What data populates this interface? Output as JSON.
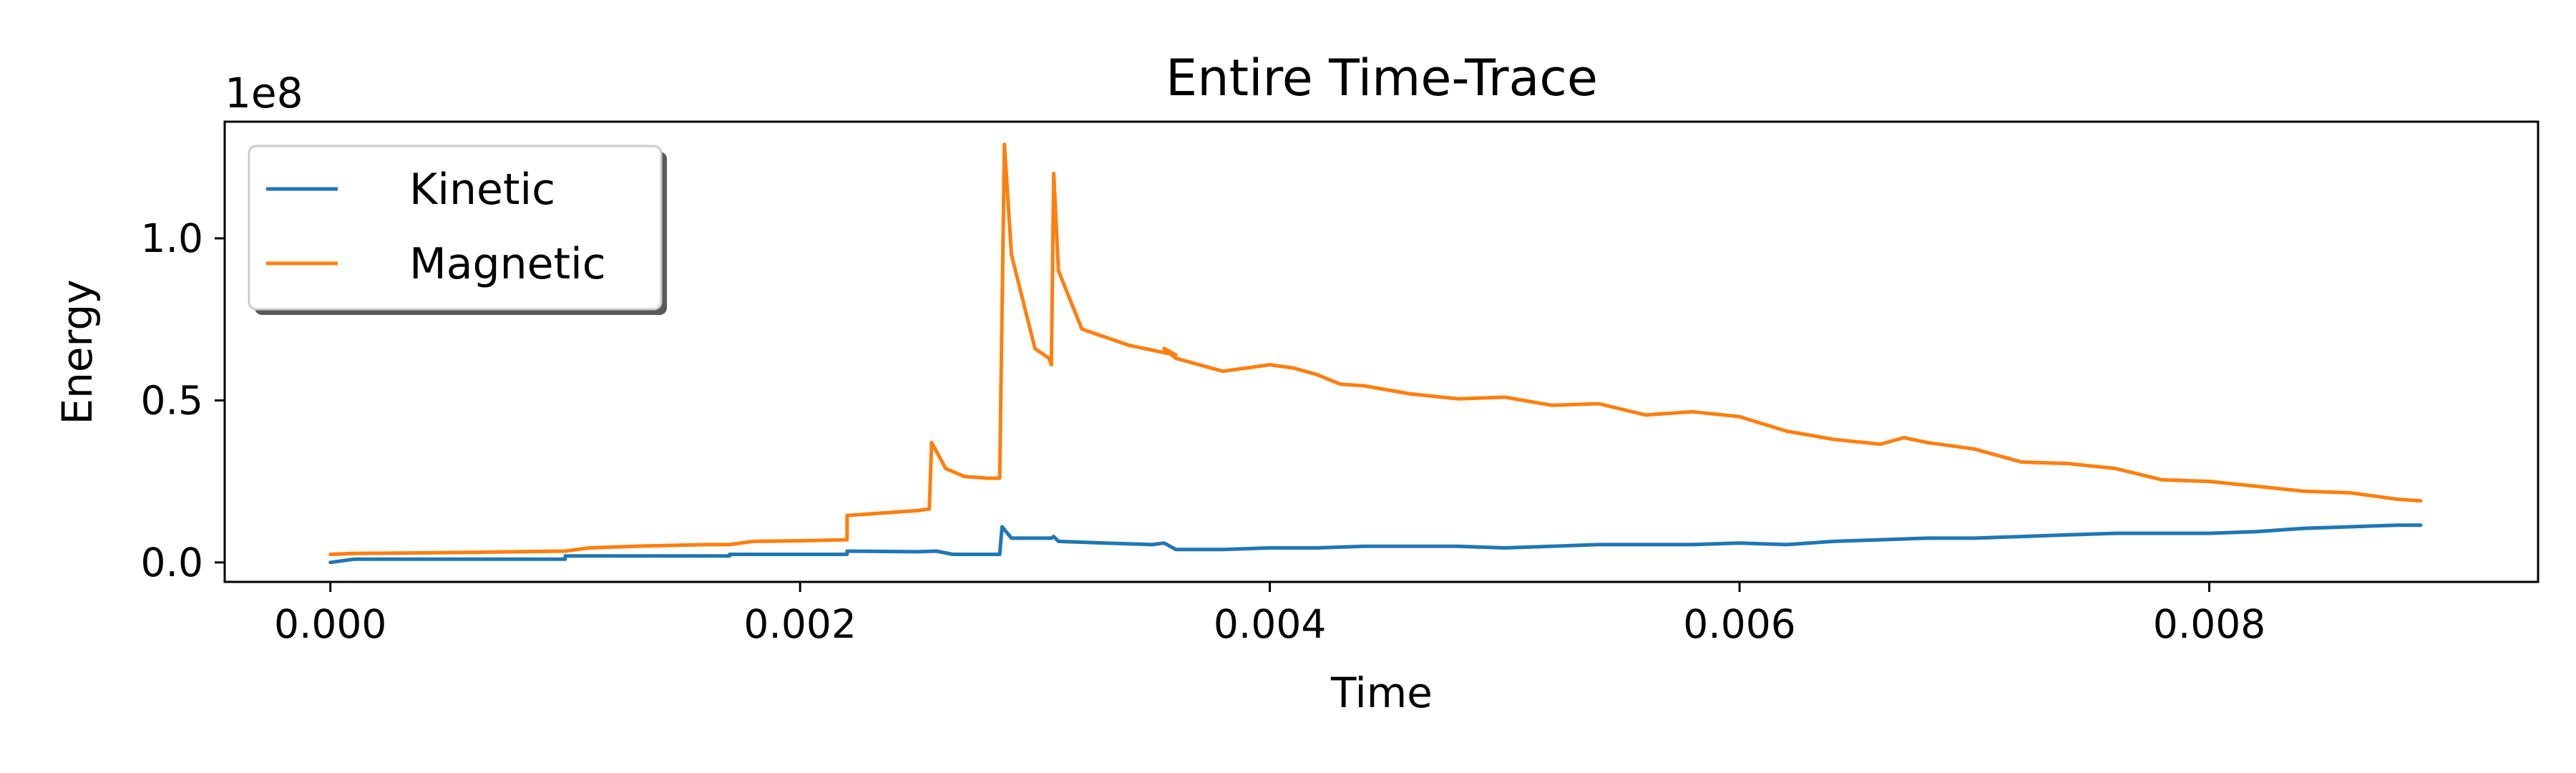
{
  "chart_data": {
    "type": "line",
    "title": "Entire Time-Trace",
    "xlabel": "Time",
    "ylabel": "Energy",
    "y_scale_label": "1e8",
    "xlim": [
      -0.00045,
      0.0094
    ],
    "ylim": [
      -0.06,
      1.36
    ],
    "y_unit_multiplier": 100000000,
    "grid": false,
    "legend_position": "upper-left",
    "x_ticks": [
      {
        "value": 0.0,
        "label": "0.000"
      },
      {
        "value": 0.002,
        "label": "0.002"
      },
      {
        "value": 0.004,
        "label": "0.004"
      },
      {
        "value": 0.006,
        "label": "0.006"
      },
      {
        "value": 0.008,
        "label": "0.008"
      }
    ],
    "y_ticks": [
      {
        "value": 0.0,
        "label": "0.0"
      },
      {
        "value": 0.5,
        "label": "0.5"
      },
      {
        "value": 1.0,
        "label": "1.0"
      }
    ],
    "series": [
      {
        "name": "Kinetic",
        "color": "#1f77b4",
        "points": [
          [
            0.0,
            0.0
          ],
          [
            0.0001,
            0.01
          ],
          [
            0.0003,
            0.01
          ],
          [
            0.0006,
            0.01
          ],
          [
            0.0009,
            0.01
          ],
          [
            0.001,
            0.01
          ],
          [
            0.001,
            0.02
          ],
          [
            0.0013,
            0.02
          ],
          [
            0.0016,
            0.02
          ],
          [
            0.0017,
            0.02
          ],
          [
            0.0017,
            0.025
          ],
          [
            0.002,
            0.025
          ],
          [
            0.0022,
            0.025
          ],
          [
            0.0022,
            0.035
          ],
          [
            0.0025,
            0.033
          ],
          [
            0.00258,
            0.035
          ],
          [
            0.00265,
            0.025
          ],
          [
            0.0028,
            0.025
          ],
          [
            0.00285,
            0.025
          ],
          [
            0.00286,
            0.11
          ],
          [
            0.0029,
            0.075
          ],
          [
            0.003,
            0.075
          ],
          [
            0.00307,
            0.075
          ],
          [
            0.00308,
            0.08
          ],
          [
            0.0031,
            0.065
          ],
          [
            0.0033,
            0.06
          ],
          [
            0.0035,
            0.055
          ],
          [
            0.00355,
            0.06
          ],
          [
            0.0036,
            0.04
          ],
          [
            0.0038,
            0.04
          ],
          [
            0.004,
            0.045
          ],
          [
            0.0042,
            0.045
          ],
          [
            0.0044,
            0.05
          ],
          [
            0.0046,
            0.05
          ],
          [
            0.0048,
            0.05
          ],
          [
            0.005,
            0.045
          ],
          [
            0.0052,
            0.05
          ],
          [
            0.0054,
            0.055
          ],
          [
            0.0056,
            0.055
          ],
          [
            0.0058,
            0.055
          ],
          [
            0.006,
            0.06
          ],
          [
            0.0062,
            0.055
          ],
          [
            0.0064,
            0.065
          ],
          [
            0.0066,
            0.07
          ],
          [
            0.0068,
            0.075
          ],
          [
            0.007,
            0.075
          ],
          [
            0.0072,
            0.08
          ],
          [
            0.0074,
            0.085
          ],
          [
            0.0076,
            0.09
          ],
          [
            0.0078,
            0.09
          ],
          [
            0.008,
            0.09
          ],
          [
            0.0082,
            0.095
          ],
          [
            0.0084,
            0.105
          ],
          [
            0.0086,
            0.11
          ],
          [
            0.0088,
            0.115
          ],
          [
            0.0089,
            0.115
          ]
        ]
      },
      {
        "name": "Magnetic",
        "color": "#ff7f0e",
        "points": [
          [
            0.0,
            0.025
          ],
          [
            0.0001,
            0.028
          ],
          [
            0.0003,
            0.029
          ],
          [
            0.0006,
            0.031
          ],
          [
            0.0009,
            0.034
          ],
          [
            0.001,
            0.035
          ],
          [
            0.0011,
            0.045
          ],
          [
            0.0013,
            0.05
          ],
          [
            0.0016,
            0.055
          ],
          [
            0.0017,
            0.055
          ],
          [
            0.0018,
            0.065
          ],
          [
            0.002,
            0.067
          ],
          [
            0.0022,
            0.07
          ],
          [
            0.0022,
            0.145
          ],
          [
            0.0024,
            0.155
          ],
          [
            0.0025,
            0.16
          ],
          [
            0.00255,
            0.165
          ],
          [
            0.00256,
            0.37
          ],
          [
            0.00262,
            0.29
          ],
          [
            0.0027,
            0.265
          ],
          [
            0.0028,
            0.26
          ],
          [
            0.00285,
            0.26
          ],
          [
            0.00287,
            1.29
          ],
          [
            0.0029,
            0.95
          ],
          [
            0.003,
            0.66
          ],
          [
            0.00306,
            0.63
          ],
          [
            0.00307,
            0.61
          ],
          [
            0.00308,
            1.2
          ],
          [
            0.0031,
            0.9
          ],
          [
            0.0032,
            0.72
          ],
          [
            0.0034,
            0.67
          ],
          [
            0.0036,
            0.64
          ],
          [
            0.00355,
            0.66
          ],
          [
            0.0036,
            0.63
          ],
          [
            0.0038,
            0.59
          ],
          [
            0.004,
            0.61
          ],
          [
            0.0041,
            0.6
          ],
          [
            0.0042,
            0.58
          ],
          [
            0.0043,
            0.55
          ],
          [
            0.0044,
            0.545
          ],
          [
            0.0046,
            0.52
          ],
          [
            0.0048,
            0.505
          ],
          [
            0.005,
            0.51
          ],
          [
            0.0052,
            0.485
          ],
          [
            0.0054,
            0.49
          ],
          [
            0.0056,
            0.455
          ],
          [
            0.0058,
            0.465
          ],
          [
            0.006,
            0.45
          ],
          [
            0.0062,
            0.405
          ],
          [
            0.0064,
            0.38
          ],
          [
            0.0066,
            0.365
          ],
          [
            0.0067,
            0.385
          ],
          [
            0.0068,
            0.37
          ],
          [
            0.007,
            0.35
          ],
          [
            0.0072,
            0.31
          ],
          [
            0.0074,
            0.305
          ],
          [
            0.0076,
            0.29
          ],
          [
            0.0078,
            0.255
          ],
          [
            0.008,
            0.25
          ],
          [
            0.0082,
            0.235
          ],
          [
            0.0084,
            0.22
          ],
          [
            0.0086,
            0.215
          ],
          [
            0.0088,
            0.195
          ],
          [
            0.0089,
            0.19
          ]
        ]
      }
    ]
  }
}
